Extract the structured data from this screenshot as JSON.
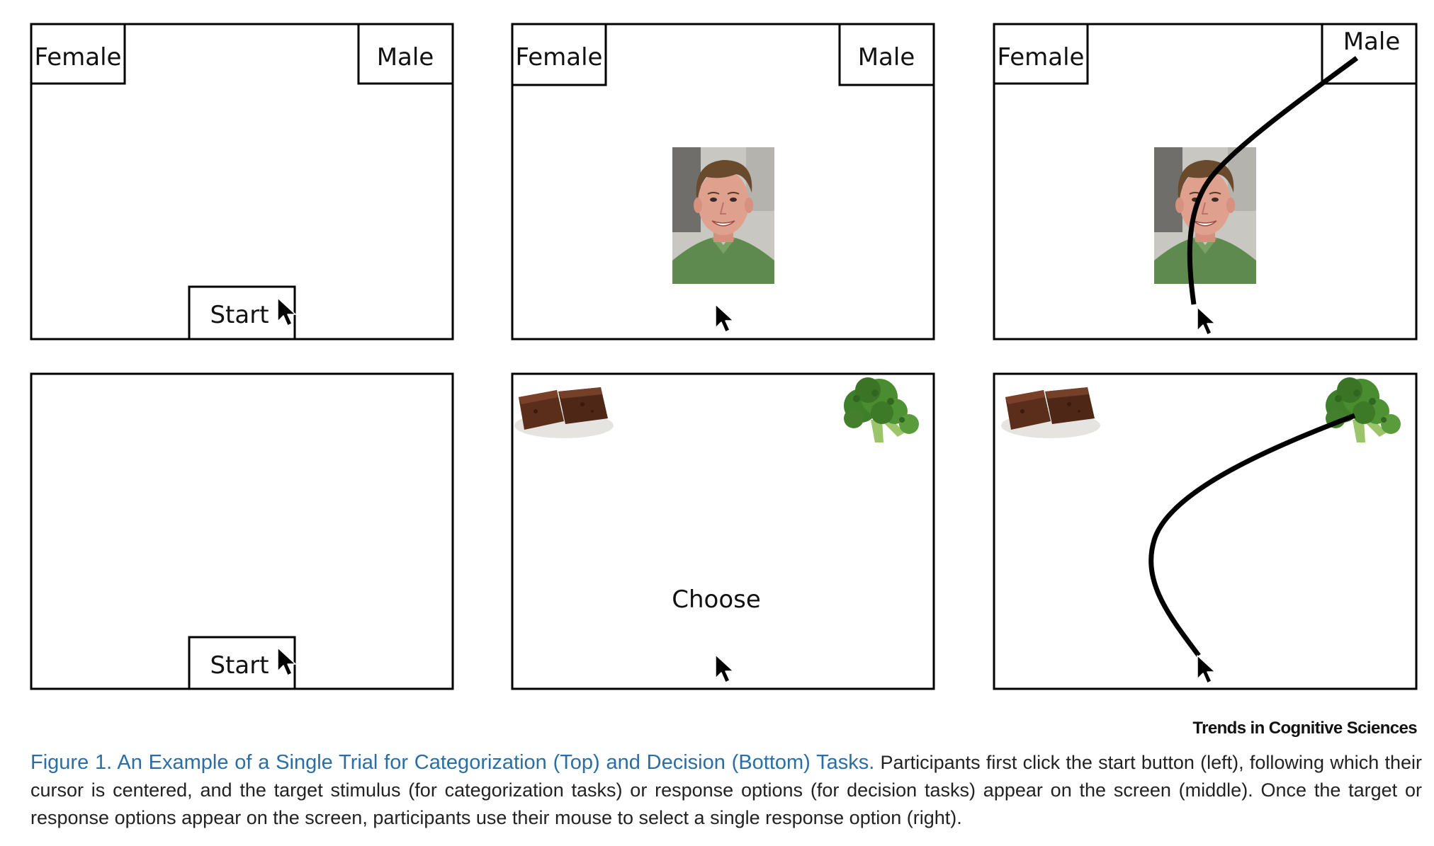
{
  "panels": {
    "female_label": "Female",
    "male_label": "Male",
    "start_label": "Start",
    "choose_label": "Choose"
  },
  "credit": "Trends in Cognitive Sciences",
  "caption": {
    "title": "Figure 1. An Example of a Single Trial for Categorization (Top) and Decision (Bottom) Tasks.",
    "body": " Participants first click the start button (left), following which their cursor is centered, and the target stimulus (for categorization tasks) or response options (for decision tasks) appear on the screen (middle). Once the target or response options appear on the screen, participants use their mouse to select a single response option (right)."
  },
  "colors": {
    "caption_title": "#2a6ea4",
    "trajectory": "#000000"
  },
  "icons": [
    "cursor-arrow-icon",
    "face-photo",
    "brownie-image",
    "broccoli-image"
  ]
}
